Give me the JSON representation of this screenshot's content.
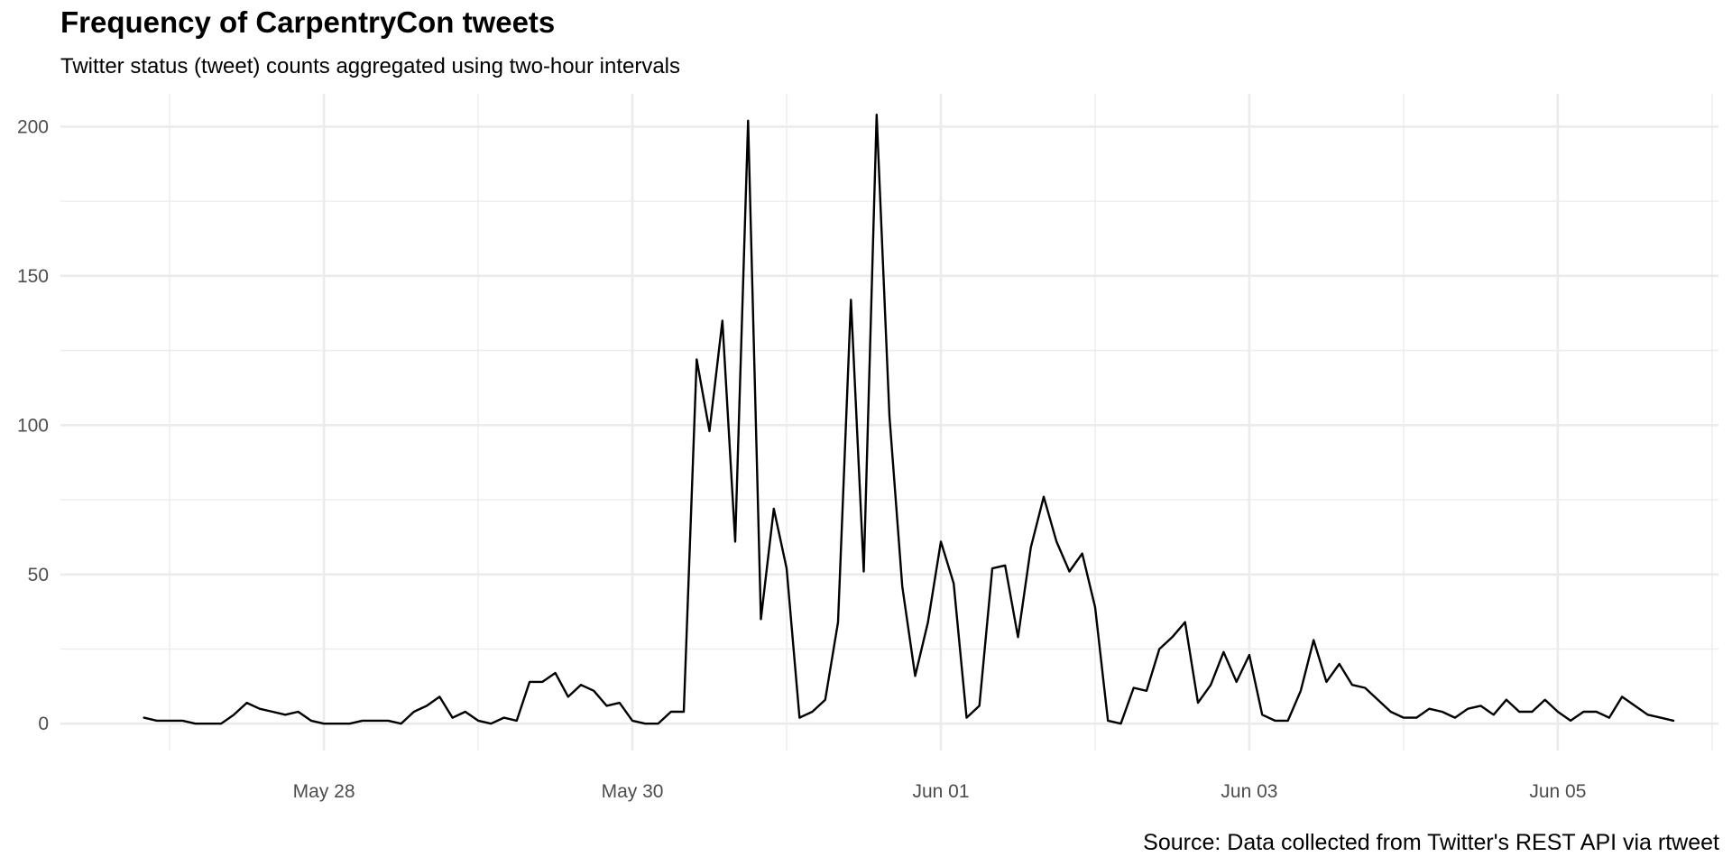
{
  "chart_data": {
    "type": "line",
    "title": "Frequency of CarpentryCon tweets",
    "subtitle": "Twitter status (tweet) counts aggregated using two-hour intervals",
    "caption": "Source: Data collected from Twitter's REST API via rtweet",
    "xlabel": "",
    "ylabel": "",
    "x_unit": "datetime",
    "xlim": [
      "2018-05-26T07:00",
      "2018-06-06T01:00"
    ],
    "ylim": [
      -9,
      211
    ],
    "x_ticks": [
      {
        "value": "2018-05-28T00:00",
        "label": "May 28"
      },
      {
        "value": "2018-05-30T00:00",
        "label": "May 30"
      },
      {
        "value": "2018-06-01T00:00",
        "label": "Jun 01"
      },
      {
        "value": "2018-06-03T00:00",
        "label": "Jun 03"
      },
      {
        "value": "2018-06-05T00:00",
        "label": "Jun 05"
      }
    ],
    "x_minor_ticks": [
      "2018-05-27T00:00",
      "2018-05-29T00:00",
      "2018-05-31T00:00",
      "2018-06-02T00:00",
      "2018-06-04T00:00",
      "2018-06-06T00:00"
    ],
    "y_ticks": [
      0,
      50,
      100,
      150,
      200
    ],
    "y_minor_ticks": [
      25,
      75,
      125,
      175
    ],
    "grid": true,
    "legend": "none",
    "series_color": "#000000",
    "series": [
      {
        "x": [
          "2018-05-26T20:00",
          "2018-05-26T22:00",
          "2018-05-27T00:00",
          "2018-05-27T02:00",
          "2018-05-27T04:00",
          "2018-05-27T06:00",
          "2018-05-27T08:00",
          "2018-05-27T10:00",
          "2018-05-27T12:00",
          "2018-05-27T14:00",
          "2018-05-27T16:00",
          "2018-05-27T18:00",
          "2018-05-27T20:00",
          "2018-05-27T22:00",
          "2018-05-28T00:00",
          "2018-05-28T02:00",
          "2018-05-28T04:00",
          "2018-05-28T06:00",
          "2018-05-28T08:00",
          "2018-05-28T10:00",
          "2018-05-28T12:00",
          "2018-05-28T14:00",
          "2018-05-28T16:00",
          "2018-05-28T18:00",
          "2018-05-28T20:00",
          "2018-05-28T22:00",
          "2018-05-29T00:00",
          "2018-05-29T02:00",
          "2018-05-29T04:00",
          "2018-05-29T06:00",
          "2018-05-29T08:00",
          "2018-05-29T10:00",
          "2018-05-29T12:00",
          "2018-05-29T14:00",
          "2018-05-29T16:00",
          "2018-05-29T18:00",
          "2018-05-29T20:00",
          "2018-05-29T22:00",
          "2018-05-30T00:00",
          "2018-05-30T02:00",
          "2018-05-30T04:00",
          "2018-05-30T06:00",
          "2018-05-30T08:00",
          "2018-05-30T10:00",
          "2018-05-30T12:00",
          "2018-05-30T14:00",
          "2018-05-30T16:00",
          "2018-05-30T18:00",
          "2018-05-30T20:00",
          "2018-05-30T22:00",
          "2018-05-31T00:00",
          "2018-05-31T02:00",
          "2018-05-31T04:00",
          "2018-05-31T06:00",
          "2018-05-31T08:00",
          "2018-05-31T10:00",
          "2018-05-31T12:00",
          "2018-05-31T14:00",
          "2018-05-31T16:00",
          "2018-05-31T18:00",
          "2018-05-31T20:00",
          "2018-05-31T22:00",
          "2018-06-01T00:00",
          "2018-06-01T02:00",
          "2018-06-01T04:00",
          "2018-06-01T06:00",
          "2018-06-01T08:00",
          "2018-06-01T10:00",
          "2018-06-01T12:00",
          "2018-06-01T14:00",
          "2018-06-01T16:00",
          "2018-06-01T18:00",
          "2018-06-01T20:00",
          "2018-06-01T22:00",
          "2018-06-02T00:00",
          "2018-06-02T02:00",
          "2018-06-02T04:00",
          "2018-06-02T06:00",
          "2018-06-02T08:00",
          "2018-06-02T10:00",
          "2018-06-02T12:00",
          "2018-06-02T14:00",
          "2018-06-02T16:00",
          "2018-06-02T18:00",
          "2018-06-02T20:00",
          "2018-06-02T22:00",
          "2018-06-03T00:00",
          "2018-06-03T02:00",
          "2018-06-03T04:00",
          "2018-06-03T06:00",
          "2018-06-03T08:00",
          "2018-06-03T10:00",
          "2018-06-03T12:00",
          "2018-06-03T14:00",
          "2018-06-03T16:00",
          "2018-06-03T18:00",
          "2018-06-03T20:00",
          "2018-06-03T22:00",
          "2018-06-04T00:00",
          "2018-06-04T02:00",
          "2018-06-04T04:00",
          "2018-06-04T06:00",
          "2018-06-04T08:00",
          "2018-06-04T10:00",
          "2018-06-04T12:00",
          "2018-06-04T14:00",
          "2018-06-04T16:00",
          "2018-06-04T18:00",
          "2018-06-04T20:00",
          "2018-06-04T22:00",
          "2018-06-05T00:00",
          "2018-06-05T02:00",
          "2018-06-05T04:00",
          "2018-06-05T06:00",
          "2018-06-05T08:00",
          "2018-06-05T10:00",
          "2018-06-05T12:00",
          "2018-06-05T14:00",
          "2018-06-05T16:00",
          "2018-06-05T18:00"
        ],
        "values": [
          2,
          1,
          1,
          1,
          0,
          0,
          0,
          3,
          7,
          5,
          4,
          3,
          4,
          1,
          0,
          0,
          0,
          1,
          1,
          1,
          0,
          4,
          6,
          9,
          2,
          4,
          1,
          0,
          2,
          1,
          14,
          14,
          17,
          9,
          13,
          11,
          6,
          7,
          1,
          0,
          0,
          4,
          4,
          122,
          98,
          135,
          61,
          202,
          35,
          72,
          52,
          2,
          4,
          8,
          34,
          142,
          51,
          204,
          103,
          46,
          16,
          34,
          61,
          47,
          2,
          6,
          52,
          53,
          29,
          59,
          76,
          61,
          51,
          57,
          39,
          1,
          0,
          12,
          11,
          25,
          29,
          34,
          7,
          13,
          24,
          14,
          23,
          3,
          1,
          1,
          11,
          28,
          14,
          20,
          13,
          12,
          8,
          4,
          2,
          2,
          5,
          4,
          2,
          5,
          6,
          3,
          8,
          4,
          4,
          8,
          4,
          1,
          4,
          4,
          2,
          9,
          6,
          3,
          2,
          1
        ]
      }
    ]
  }
}
